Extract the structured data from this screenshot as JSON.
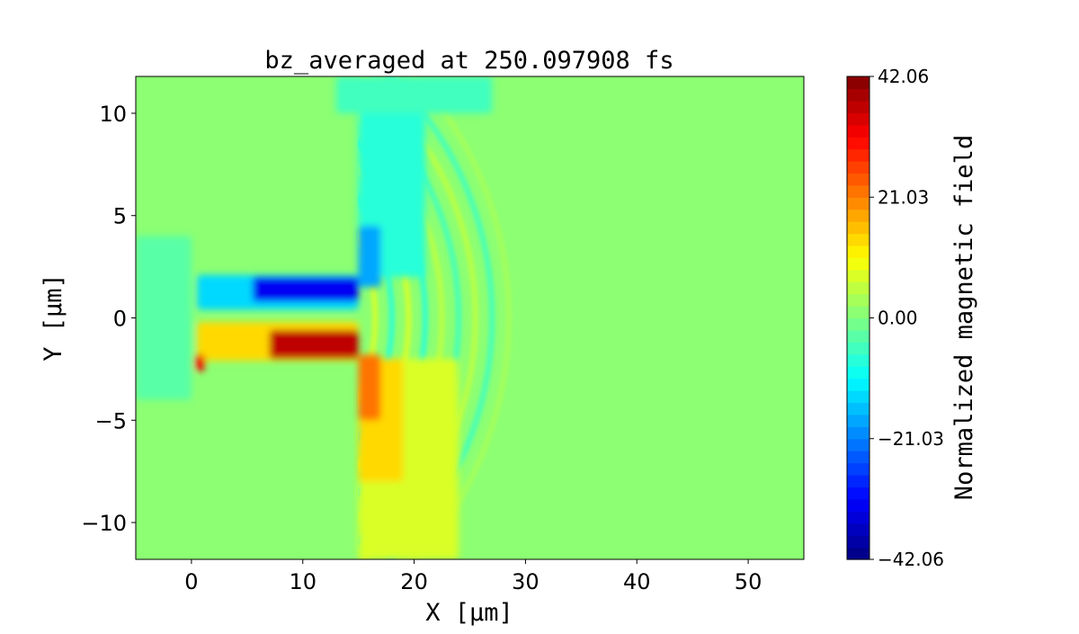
{
  "chart_data": {
    "type": "heatmap",
    "title": "bz_averaged at 250.097908 fs",
    "xlabel": "X [μm]",
    "ylabel": "Y [μm]",
    "xlim": [
      -5,
      55
    ],
    "ylim": [
      -11.8,
      11.8
    ],
    "xticks": [
      0,
      10,
      20,
      30,
      40,
      50
    ],
    "xtick_labels": [
      "0",
      "10",
      "20",
      "30",
      "40",
      "50"
    ],
    "yticks": [
      -10,
      -5,
      0,
      5,
      10
    ],
    "ytick_labels": [
      "−10",
      "−5",
      "0",
      "5",
      "10"
    ],
    "colormap": "jet",
    "colorbar": {
      "label": "Normalized magnetic field",
      "vmin": -42.06,
      "vmax": 42.06,
      "levels": 40,
      "ticks": [
        -42.06,
        -21.03,
        0.0,
        21.03,
        42.06
      ],
      "tick_labels": [
        "−42.06",
        "−21.03",
        "0.00",
        "21.03",
        "42.06"
      ]
    },
    "background_value": 0,
    "regions": [
      {
        "x": [
          15,
          24
        ],
        "y": [
          -11.8,
          -2
        ],
        "value": 7
      },
      {
        "x": [
          15,
          19
        ],
        "y": [
          -8,
          -2
        ],
        "value": 14
      },
      {
        "x": [
          15,
          17
        ],
        "y": [
          -5,
          -1.8
        ],
        "value": 22
      },
      {
        "x": [
          13,
          27
        ],
        "y": [
          10,
          11.8
        ],
        "value": -5
      },
      {
        "x": [
          15,
          21
        ],
        "y": [
          2,
          10
        ],
        "value": -7
      },
      {
        "x": [
          15,
          17
        ],
        "y": [
          1.5,
          4.5
        ],
        "value": -18
      },
      {
        "x": [
          0.5,
          15
        ],
        "y": [
          0.4,
          2.1
        ],
        "value": -14
      },
      {
        "x": [
          5.5,
          15
        ],
        "y": [
          0.8,
          2.0
        ],
        "value": -33
      },
      {
        "x": [
          0.5,
          15
        ],
        "y": [
          -2.1,
          -0.2
        ],
        "value": 14
      },
      {
        "x": [
          7,
          15
        ],
        "y": [
          -2.0,
          -0.6
        ],
        "value": 36
      },
      {
        "x": [
          0.3,
          1.2
        ],
        "y": [
          -2.6,
          -1.8
        ],
        "value": 32
      },
      {
        "x": [
          -5,
          0
        ],
        "y": [
          -4,
          4
        ],
        "value": -4
      }
    ],
    "wavefronts": [
      {
        "radius_x": 16.5,
        "radius_y": 9.5,
        "value": 8
      },
      {
        "radius_x": 18,
        "radius_y": 10.5,
        "value": -8
      },
      {
        "radius_x": 19.5,
        "radius_y": 11.3,
        "value": 7
      },
      {
        "radius_x": 21,
        "radius_y": 12.2,
        "value": -7
      },
      {
        "radius_x": 22.5,
        "radius_y": 13.1,
        "value": 6
      },
      {
        "radius_x": 24,
        "radius_y": 14,
        "value": -6
      },
      {
        "radius_x": 25.5,
        "radius_y": 14.8,
        "value": 5
      },
      {
        "radius_x": 27,
        "radius_y": 15.7,
        "value": -5
      },
      {
        "radius_x": 28.5,
        "radius_y": 16.6,
        "value": 4
      }
    ]
  }
}
